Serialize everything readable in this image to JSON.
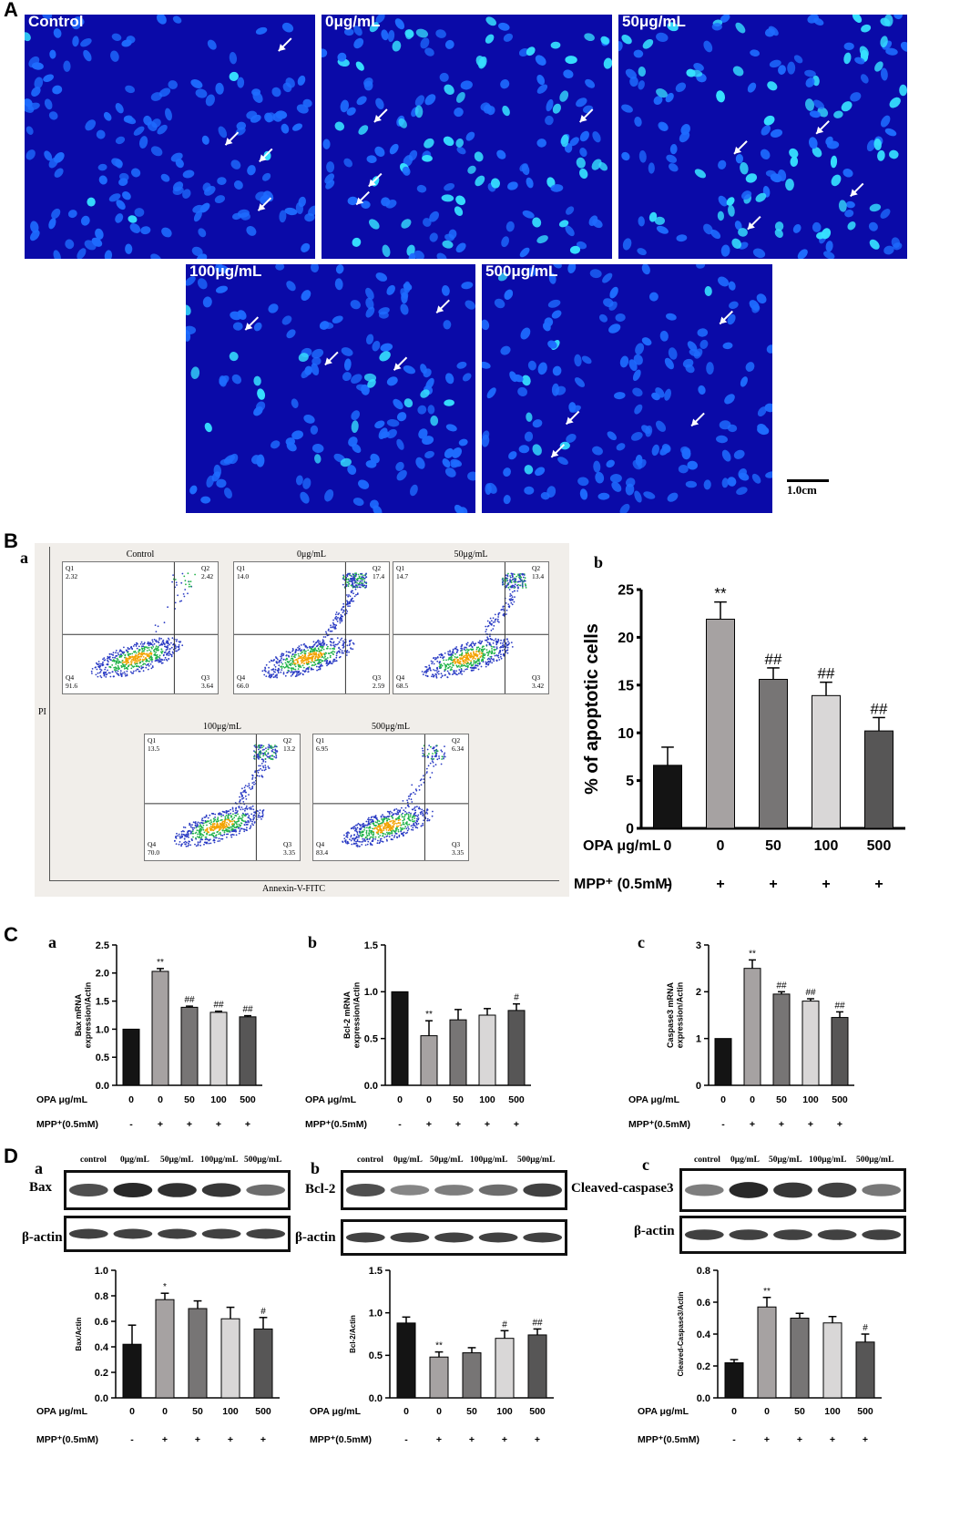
{
  "panels": {
    "A": "A",
    "B": "B",
    "C": "C",
    "D": "D"
  },
  "sublabels": {
    "a": "a",
    "b": "b",
    "c": "c"
  },
  "microscopy": {
    "images": [
      {
        "label": "Control"
      },
      {
        "label": "0μg/mL"
      },
      {
        "label": "50μg/mL"
      },
      {
        "label": "100μg/mL"
      },
      {
        "label": "500μg/mL"
      }
    ],
    "scale_bar": "1.0cm",
    "colors": {
      "background": "#0a0aa8",
      "nucleus": "#1e6cff",
      "apoptotic": "#36e0ff"
    }
  },
  "flow": {
    "y_axis": "PI",
    "x_axis": "Annexin-V-FITC",
    "quadrant_labels": [
      "Q1",
      "Q2",
      "Q3",
      "Q4"
    ],
    "plots": [
      {
        "title": "Control",
        "q1": "2.32",
        "q2": "2.42",
        "q3": "3.64",
        "q4": "91.6"
      },
      {
        "title": "0μg/mL",
        "q1": "14.0",
        "q2": "17.4",
        "q3": "2.59",
        "q4": "66.0"
      },
      {
        "title": "50μg/mL",
        "q1": "14.7",
        "q2": "13.4",
        "q3": "3.42",
        "q4": "68.5"
      },
      {
        "title": "100μg/mL",
        "q1": "13.5",
        "q2": "13.2",
        "q3": "3.35",
        "q4": "70.0"
      },
      {
        "title": "500μg/mL",
        "q1": "6.95",
        "q2": "6.34",
        "q3": "3.35",
        "q4": "83.4"
      }
    ]
  },
  "row_labels": {
    "opa": "OPA μg/mL",
    "mpp": "MPP⁺ (0.5mM)",
    "mpp_small": "MPP⁺(0.5mM)"
  },
  "doses": [
    "0",
    "0",
    "50",
    "100",
    "500"
  ],
  "mpp_signs": [
    "-",
    "+",
    "+",
    "+",
    "+"
  ],
  "chart_data": [
    {
      "id": "B-b",
      "type": "bar",
      "categories": [
        "0",
        "0",
        "50",
        "100",
        "500"
      ],
      "values": [
        6.6,
        21.9,
        15.6,
        13.9,
        10.2
      ],
      "errors": [
        1.9,
        1.8,
        1.2,
        1.4,
        1.4
      ],
      "annotations": [
        "",
        "**",
        "##",
        "##",
        "##"
      ],
      "ylabel": "% of apoptotic cells",
      "ylim": [
        0,
        25
      ],
      "yticks": [
        "0",
        "5",
        "10",
        "15",
        "20",
        "25"
      ]
    },
    {
      "id": "C-a",
      "type": "bar",
      "categories": [
        "0",
        "0",
        "50",
        "100",
        "500"
      ],
      "values": [
        1.0,
        2.03,
        1.39,
        1.3,
        1.22
      ],
      "errors": [
        0,
        0.05,
        0.02,
        0.02,
        0.02
      ],
      "annotations": [
        "",
        "**",
        "##",
        "##",
        "##"
      ],
      "ylabel": "Bax mRNA expression/Actin",
      "ylim": [
        0,
        2.5
      ],
      "yticks": [
        "0.0",
        "0.5",
        "1.0",
        "1.5",
        "2.0",
        "2.5"
      ]
    },
    {
      "id": "C-b",
      "type": "bar",
      "categories": [
        "0",
        "0",
        "50",
        "100",
        "500"
      ],
      "values": [
        1.0,
        0.53,
        0.7,
        0.75,
        0.8
      ],
      "errors": [
        0,
        0.16,
        0.11,
        0.07,
        0.07
      ],
      "annotations": [
        "",
        "**",
        "",
        "",
        "#"
      ],
      "ylabel": "Bcl-2 mRNA expression/Actin",
      "ylim": [
        0,
        1.5
      ],
      "yticks": [
        "0.0",
        "0.5",
        "1.0",
        "1.5"
      ]
    },
    {
      "id": "C-c",
      "type": "bar",
      "categories": [
        "0",
        "0",
        "50",
        "100",
        "500"
      ],
      "values": [
        1.0,
        2.5,
        1.95,
        1.8,
        1.45
      ],
      "errors": [
        0,
        0.18,
        0.05,
        0.05,
        0.12
      ],
      "annotations": [
        "",
        "**",
        "##",
        "##",
        "##"
      ],
      "ylabel": "Caspase3 mRNA expression/Actin",
      "ylim": [
        0,
        3
      ],
      "yticks": [
        "0",
        "1",
        "2",
        "3"
      ]
    },
    {
      "id": "D-a",
      "type": "bar",
      "categories": [
        "0",
        "0",
        "50",
        "100",
        "500"
      ],
      "values": [
        0.42,
        0.77,
        0.7,
        0.62,
        0.54
      ],
      "errors": [
        0.15,
        0.05,
        0.06,
        0.09,
        0.09
      ],
      "annotations": [
        "",
        "*",
        "",
        "",
        "#"
      ],
      "ylabel": "Bax/Actin",
      "ylim": [
        0,
        1.0
      ],
      "yticks": [
        "0.0",
        "0.2",
        "0.4",
        "0.6",
        "0.8",
        "1.0"
      ]
    },
    {
      "id": "D-b",
      "type": "bar",
      "categories": [
        "0",
        "0",
        "50",
        "100",
        "500"
      ],
      "values": [
        0.88,
        0.48,
        0.53,
        0.7,
        0.74
      ],
      "errors": [
        0.07,
        0.06,
        0.06,
        0.09,
        0.07
      ],
      "annotations": [
        "",
        "**",
        "",
        "#",
        "##"
      ],
      "ylabel": "Bcl-2/Actin",
      "ylim": [
        0,
        1.5
      ],
      "yticks": [
        "0.0",
        "0.5",
        "1.0",
        "1.5"
      ]
    },
    {
      "id": "D-c",
      "type": "bar",
      "categories": [
        "0",
        "0",
        "50",
        "100",
        "500"
      ],
      "values": [
        0.22,
        0.57,
        0.5,
        0.47,
        0.35
      ],
      "errors": [
        0.02,
        0.06,
        0.03,
        0.04,
        0.05
      ],
      "annotations": [
        "",
        "**",
        "",
        "",
        "#"
      ],
      "ylabel": "Cleaved-Caspase3/Actin",
      "ylim": [
        0,
        0.8
      ],
      "yticks": [
        "0.0",
        "0.2",
        "0.4",
        "0.6",
        "0.8"
      ]
    }
  ],
  "bar_colors": [
    "#141414",
    "#a6a2a2",
    "#777575",
    "#d9d7d7",
    "#575656"
  ],
  "blots": [
    {
      "lanes": [
        "control",
        "0μg/mL",
        "50μg/mL",
        "100μg/mL",
        "500μg/mL"
      ],
      "protein": "Bax",
      "loading": "β-actin",
      "intensity": [
        0.75,
        1,
        0.95,
        0.9,
        0.55
      ]
    },
    {
      "lanes": [
        "control",
        "0μg/mL",
        "50μg/mL",
        "100μg/mL",
        "500μg/mL"
      ],
      "protein": "Bcl-2",
      "loading": "β-actin",
      "intensity": [
        0.75,
        0.4,
        0.45,
        0.55,
        0.85
      ]
    },
    {
      "lanes": [
        "control",
        "0μg/mL",
        "50μg/mL",
        "100μg/mL",
        "500μg/mL"
      ],
      "protein": "Cleaved-caspase3",
      "loading": "β-actin",
      "intensity": [
        0.45,
        1,
        0.9,
        0.85,
        0.5
      ]
    }
  ]
}
